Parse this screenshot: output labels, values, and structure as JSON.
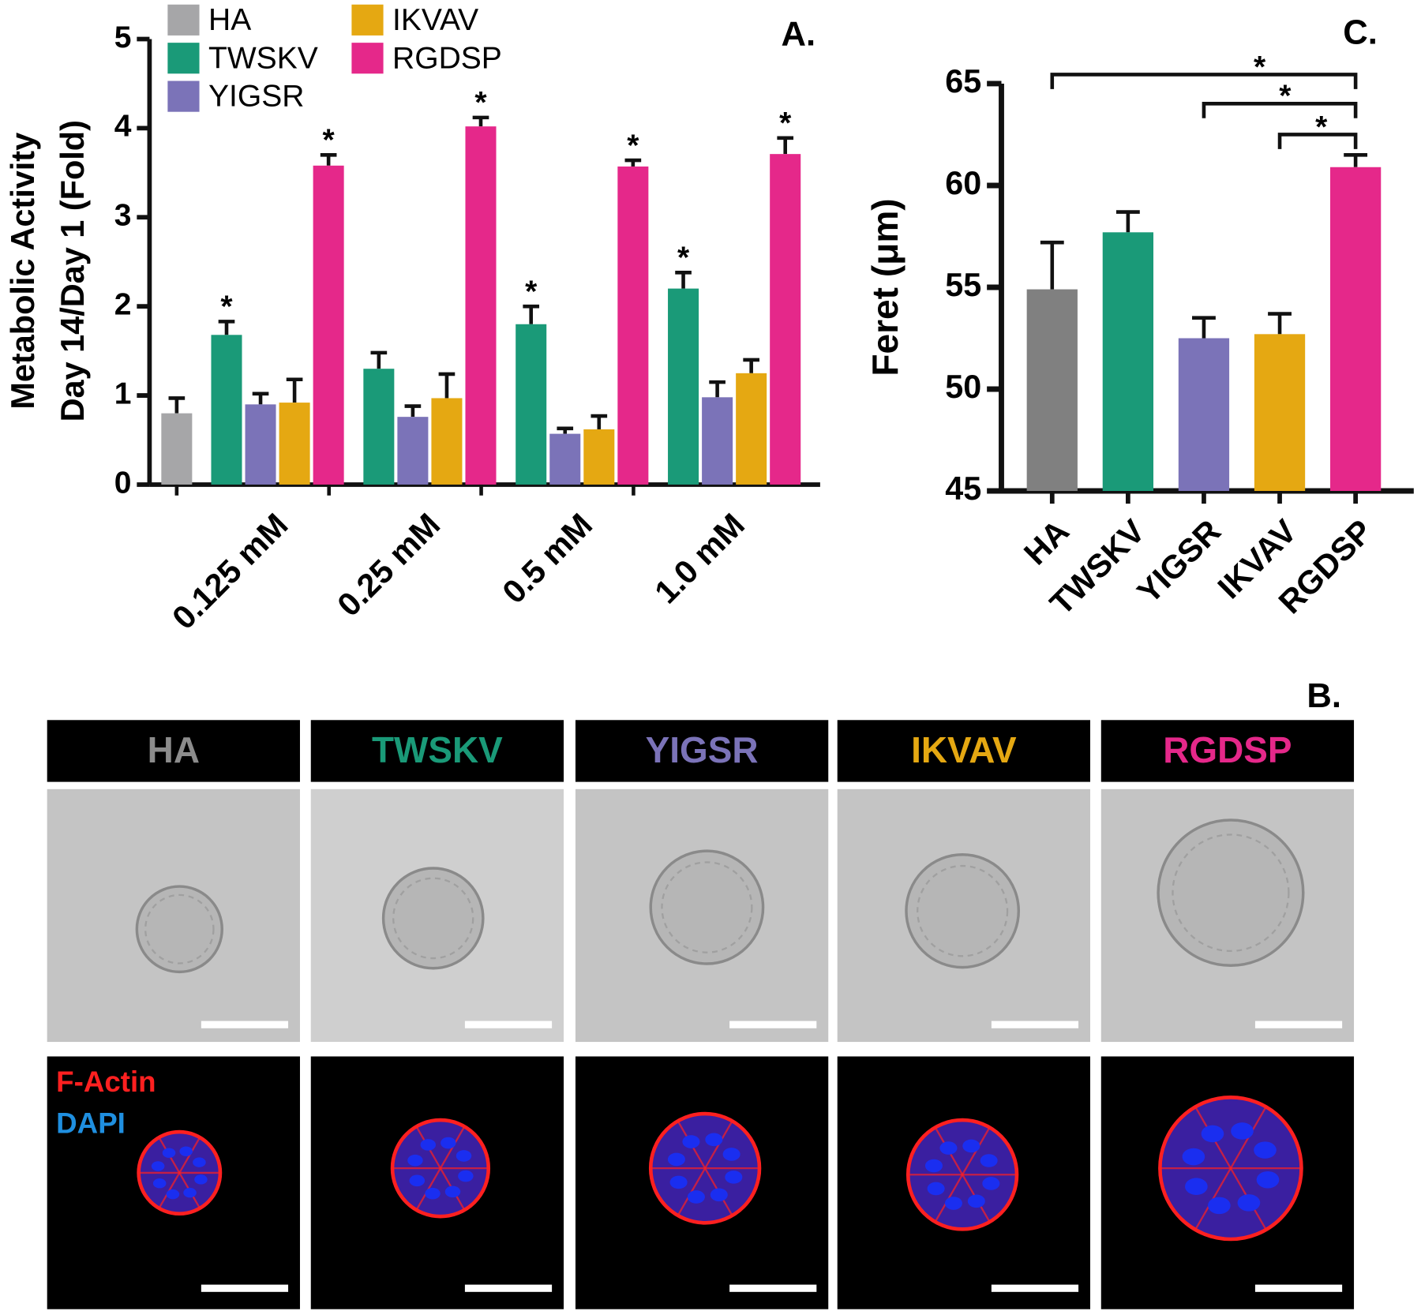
{
  "chart_data": [
    {
      "type": "bar",
      "panel_label": "A.",
      "y_label": [
        "Metabolic Activity",
        "Day 14/Day 1 (Fold)"
      ],
      "categories": [
        "0.125 mM",
        "0.25 mM",
        "0.5 mM",
        "1.0 mM"
      ],
      "series": [
        {
          "name": "HA",
          "color": "#a6a6a8",
          "values": [
            0.8,
            null,
            null,
            null
          ],
          "errors": [
            0.17,
            null,
            null,
            null
          ],
          "significance": [
            null,
            null,
            null,
            null
          ]
        },
        {
          "name": "TWSKV",
          "color": "#1a9a78",
          "values": [
            1.68,
            1.3,
            1.8,
            2.2
          ],
          "errors": [
            0.15,
            0.18,
            0.2,
            0.18
          ],
          "significance": [
            "*",
            null,
            "*",
            "*"
          ]
        },
        {
          "name": "YIGSR",
          "color": "#7b73b8",
          "values": [
            0.9,
            0.76,
            0.57,
            0.98
          ],
          "errors": [
            0.12,
            0.12,
            0.06,
            0.17
          ],
          "significance": [
            null,
            null,
            null,
            null
          ]
        },
        {
          "name": "IKVAV",
          "color": "#e5a812",
          "values": [
            0.92,
            0.97,
            0.62,
            1.25
          ],
          "errors": [
            0.26,
            0.27,
            0.15,
            0.15
          ],
          "significance": [
            null,
            null,
            null,
            null
          ]
        },
        {
          "name": "RGDSP",
          "color": "#e5288a",
          "values": [
            3.58,
            4.02,
            3.57,
            3.71
          ],
          "errors": [
            0.12,
            0.1,
            0.07,
            0.18
          ],
          "significance": [
            "*",
            "*",
            "*",
            "*"
          ]
        }
      ],
      "ylim": [
        0,
        5
      ],
      "yticks": [
        0,
        1,
        2,
        3,
        4,
        5
      ]
    },
    {
      "type": "bar",
      "panel_label": "C.",
      "y_label": [
        "Feret (μm)"
      ],
      "categories": [
        "HA",
        "TWSKV",
        "YIGSR",
        "IKVAV",
        "RGDSP"
      ],
      "values": [
        54.9,
        57.7,
        52.5,
        52.7,
        60.9
      ],
      "errors": [
        2.3,
        1.0,
        1.0,
        1.0,
        0.6
      ],
      "colors": [
        "#808080",
        "#1a9a78",
        "#7b73b8",
        "#e5a812",
        "#e5288a"
      ],
      "comparisons": [
        {
          "from": "HA",
          "to": "RGDSP",
          "label": "*"
        },
        {
          "from": "YIGSR",
          "to": "RGDSP",
          "label": "*"
        },
        {
          "from": "IKVAV",
          "to": "RGDSP",
          "label": "*"
        }
      ],
      "ylim": [
        45,
        65
      ],
      "yticks": [
        45,
        50,
        55,
        60,
        65
      ]
    }
  ],
  "panel_b": {
    "label": "B.",
    "columns": [
      {
        "name": "HA",
        "color": "#8c8c8c"
      },
      {
        "name": "TWSKV",
        "color": "#1a9a78"
      },
      {
        "name": "YIGSR",
        "color": "#7b73b8"
      },
      {
        "name": "IKVAV",
        "color": "#e5a812"
      },
      {
        "name": "RGDSP",
        "color": "#e5288a"
      }
    ],
    "stains": [
      {
        "name": "F-Actin",
        "color": "#ff2020"
      },
      {
        "name": "DAPI",
        "color": "#1f8fe0"
      }
    ]
  }
}
